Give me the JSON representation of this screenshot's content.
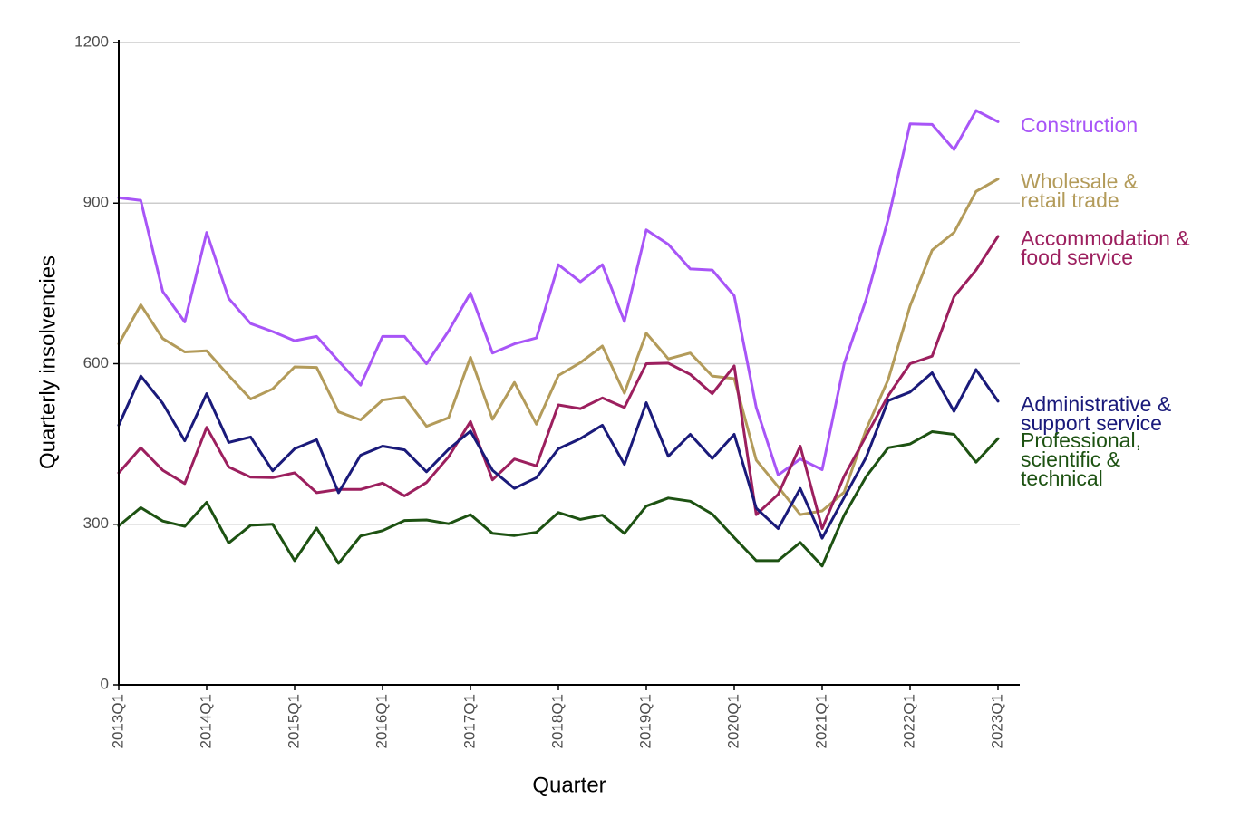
{
  "chart_data": {
    "type": "line",
    "title": "",
    "xlabel": "Quarter",
    "ylabel": "Quarterly insolvencies",
    "ylim": [
      0,
      1200
    ],
    "yticks": [
      0,
      300,
      600,
      900,
      1200
    ],
    "grid": true,
    "legend": "direct labels at right end of lines",
    "x": [
      "2013Q1",
      "2013Q2",
      "2013Q3",
      "2013Q4",
      "2014Q1",
      "2014Q2",
      "2014Q3",
      "2014Q4",
      "2015Q1",
      "2015Q2",
      "2015Q3",
      "2015Q4",
      "2016Q1",
      "2016Q2",
      "2016Q3",
      "2016Q4",
      "2017Q1",
      "2017Q2",
      "2017Q3",
      "2017Q4",
      "2018Q1",
      "2018Q2",
      "2018Q3",
      "2018Q4",
      "2019Q1",
      "2019Q2",
      "2019Q3",
      "2019Q4",
      "2020Q1",
      "2020Q2",
      "2020Q3",
      "2020Q4",
      "2021Q1",
      "2021Q2",
      "2021Q3",
      "2021Q4",
      "2022Q1",
      "2022Q2",
      "2022Q3",
      "2022Q4",
      "2023Q1"
    ],
    "xticks": [
      "2013Q1",
      "2014Q1",
      "2015Q1",
      "2016Q1",
      "2017Q1",
      "2018Q1",
      "2019Q1",
      "2020Q1",
      "2021Q1",
      "2022Q1",
      "2023Q1"
    ],
    "series": [
      {
        "name": "Construction",
        "label_lines": [
          "Construction"
        ],
        "color": "#a855f7",
        "values": [
          910,
          905,
          735,
          678,
          845,
          722,
          675,
          660,
          643,
          651,
          605,
          560,
          651,
          651,
          600,
          661,
          732,
          620,
          637,
          648,
          785,
          753,
          785,
          679,
          850,
          823,
          777,
          775,
          727,
          518,
          392,
          422,
          402,
          600,
          720,
          870,
          1048,
          1047,
          1000,
          1073,
          1052
        ]
      },
      {
        "name": "Wholesale & retail trade",
        "label_lines": [
          "Wholesale &",
          "retail trade"
        ],
        "color": "#b39b5a",
        "values": [
          637,
          710,
          647,
          622,
          624,
          578,
          534,
          553,
          594,
          593,
          510,
          495,
          532,
          538,
          483,
          499,
          612,
          496,
          565,
          487,
          578,
          602,
          633,
          545,
          657,
          609,
          620,
          577,
          572,
          420,
          370,
          318,
          325,
          360,
          477,
          570,
          708,
          812,
          845,
          922,
          945
        ]
      },
      {
        "name": "Accommodation & food service",
        "label_lines": [
          "Accommodation &",
          "food service"
        ],
        "color": "#9c1f5e",
        "values": [
          396,
          443,
          401,
          376,
          481,
          407,
          388,
          387,
          396,
          359,
          365,
          365,
          377,
          353,
          378,
          426,
          492,
          383,
          422,
          409,
          523,
          516,
          536,
          518,
          600,
          601,
          580,
          544,
          596,
          318,
          356,
          446,
          292,
          390,
          465,
          540,
          600,
          614,
          725,
          775,
          838
        ]
      },
      {
        "name": "Administrative & support service",
        "label_lines": [
          "Administrative &",
          "support service"
        ],
        "color": "#1a1a7a",
        "values": [
          485,
          577,
          526,
          456,
          544,
          453,
          463,
          400,
          441,
          458,
          359,
          429,
          446,
          439,
          398,
          440,
          474,
          401,
          367,
          387,
          441,
          460,
          485,
          412,
          527,
          427,
          468,
          423,
          468,
          330,
          292,
          367,
          274,
          350,
          425,
          531,
          547,
          583,
          511,
          589,
          530
        ]
      },
      {
        "name": "Professional, scientific & technical",
        "label_lines": [
          "Professional,",
          "scientific &",
          "technical"
        ],
        "color": "#1d5212",
        "values": [
          297,
          331,
          306,
          296,
          341,
          265,
          298,
          300,
          232,
          293,
          227,
          278,
          288,
          307,
          308,
          301,
          318,
          283,
          279,
          285,
          322,
          309,
          317,
          283,
          334,
          349,
          343,
          319,
          275,
          232,
          232,
          266,
          222,
          317,
          389,
          443,
          450,
          473,
          468,
          416,
          460
        ]
      }
    ]
  }
}
